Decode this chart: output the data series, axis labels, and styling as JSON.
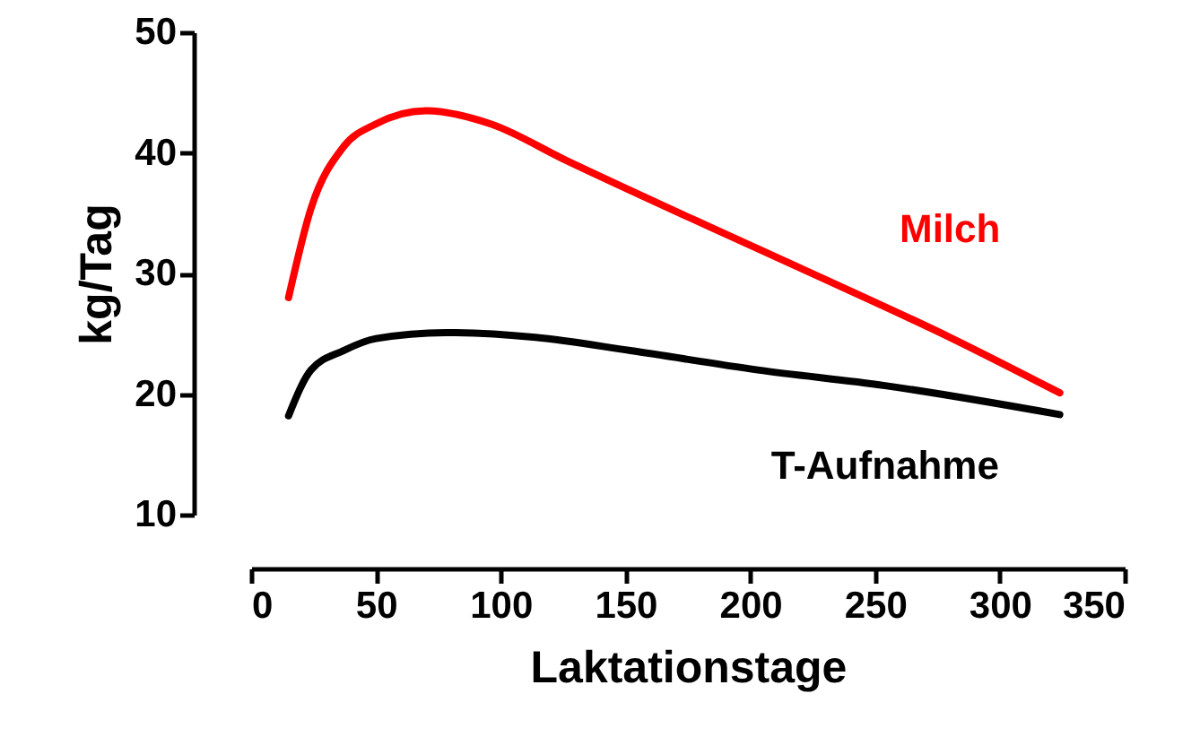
{
  "chart_data": {
    "type": "line",
    "xlabel": "Laktationstage",
    "ylabel": "kg/Tag",
    "xlim": [
      0,
      350
    ],
    "xticks": [
      0,
      50,
      100,
      150,
      200,
      250,
      300,
      350
    ],
    "ylim": [
      10,
      50
    ],
    "yticks": [
      10,
      20,
      30,
      40,
      50
    ],
    "marker": "none",
    "line_style": "solid",
    "series": [
      {
        "name": "Milch",
        "color": "#ff0000",
        "x": [
          15,
          24,
          37,
          50,
          70,
          96,
          126,
          177,
          229,
          280,
          324
        ],
        "values": [
          28.0,
          35.4,
          40.5,
          42.4,
          43.5,
          42.4,
          39.4,
          34.5,
          29.6,
          24.7,
          20.1
        ]
      },
      {
        "name": "T-Aufnahme",
        "color": "#000000",
        "x": [
          15,
          24,
          37,
          50,
          78,
          114,
          152,
          203,
          254,
          324
        ],
        "values": [
          18.2,
          22.0,
          23.6,
          24.6,
          25.1,
          24.7,
          23.6,
          22.0,
          20.7,
          18.3
        ]
      }
    ]
  }
}
